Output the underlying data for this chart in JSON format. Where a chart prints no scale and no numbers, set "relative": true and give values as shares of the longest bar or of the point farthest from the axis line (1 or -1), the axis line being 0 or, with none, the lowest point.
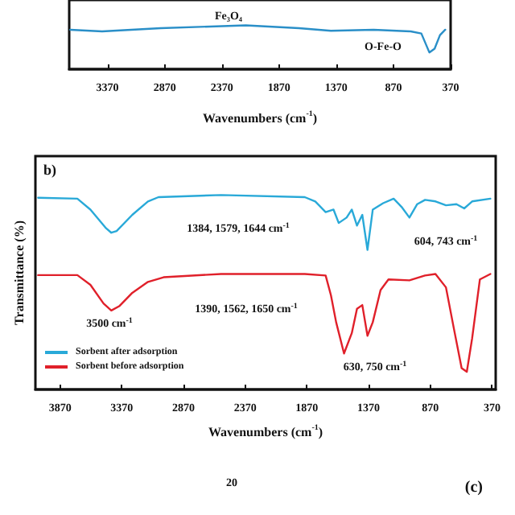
{
  "chart_data": [
    {
      "type": "line",
      "relative": true,
      "xlabel": "Wavenumbers (cm$^{-1}$)",
      "xlim": [
        3705,
        370
      ],
      "xticks": [
        3370,
        2870,
        2370,
        1870,
        1370,
        870,
        370
      ],
      "grid": false,
      "legend": false,
      "marker": "none",
      "line_style": "solid",
      "annotations": [
        "Fe₃O₄",
        "O-Fe-O"
      ],
      "series": [
        {
          "color": "#2a8fc8",
          "x": [
            3696,
            3417,
            2905,
            2161,
            1696,
            1417,
            1044,
            719,
            626,
            556,
            510,
            463,
            417
          ],
          "values": [
            0.901,
            0.864,
            0.938,
            1,
            0.938,
            0.877,
            0.901,
            0.864,
            0.815,
            0.383,
            0.469,
            0.778,
            0.901
          ]
        }
      ]
    },
    {
      "type": "line",
      "relative": true,
      "title": "b)",
      "xlabel": "Wavenumbers (cm$^{-1}$)",
      "ylabel": "Transmittance (%)",
      "xlim": [
        4070,
        340
      ],
      "xticks": [
        3870,
        3370,
        2870,
        2370,
        1870,
        1370,
        870,
        370
      ],
      "grid": false,
      "legend": "bottom left",
      "marker": "none",
      "line_style": "solid",
      "annotations": [
        "3500 cm$^{-1}$",
        "1384, 1579, 1644 cm$^{-1}$",
        "604, 743 cm$^{-1}$",
        "1390, 1562, 1650 cm$^{-1}$",
        "630, 750 cm$^{-1}$"
      ],
      "series": [
        {
          "name": "Sorbent after adsorption",
          "color": "#29a9d8",
          "x": [
            4048,
            3730,
            3624,
            3497,
            3455,
            3412,
            3285,
            3158,
            3073,
            2565,
            1887,
            1802,
            1718,
            1654,
            1612,
            1548,
            1506,
            1464,
            1421,
            1379,
            1336,
            1252,
            1167,
            1103,
            1039,
            976,
            912,
            827,
            743,
            658,
            595,
            531,
            383
          ],
          "values": [
            0.986,
            0.981,
            0.925,
            0.829,
            0.806,
            0.815,
            0.898,
            0.967,
            0.989,
            1,
            0.989,
            0.967,
            0.912,
            0.925,
            0.856,
            0.884,
            0.925,
            0.843,
            0.898,
            0.718,
            0.925,
            0.958,
            0.981,
            0.939,
            0.884,
            0.953,
            0.975,
            0.967,
            0.947,
            0.953,
            0.931,
            0.967,
            0.981
          ]
        },
        {
          "name": "Sorbent before adsorption",
          "color": "#e0202a",
          "x": [
            4048,
            3730,
            3624,
            3518,
            3455,
            3391,
            3285,
            3158,
            3031,
            2565,
            1887,
            1718,
            1675,
            1633,
            1569,
            1506,
            1464,
            1421,
            1379,
            1336,
            1273,
            1209,
            1039,
            913,
            828,
            743,
            680,
            616,
            574,
            531,
            468,
            383
          ],
          "values": [
            0.588,
            0.588,
            0.538,
            0.442,
            0.406,
            0.428,
            0.497,
            0.553,
            0.577,
            0.594,
            0.594,
            0.586,
            0.484,
            0.346,
            0.185,
            0.29,
            0.415,
            0.434,
            0.276,
            0.346,
            0.511,
            0.566,
            0.561,
            0.586,
            0.594,
            0.525,
            0.317,
            0.11,
            0.091,
            0.262,
            0.566,
            0.594
          ]
        }
      ]
    },
    {
      "type": "other",
      "title": "(c)",
      "annotations": [
        "20"
      ]
    }
  ]
}
